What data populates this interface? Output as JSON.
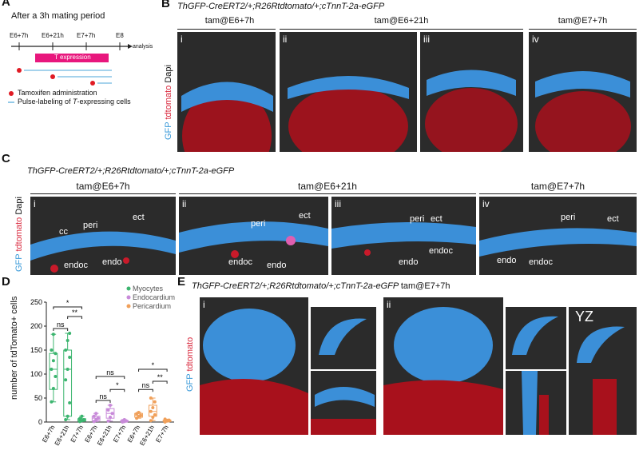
{
  "panels": {
    "a": "A",
    "b": "B",
    "c": "C",
    "d": "D",
    "e": "E"
  },
  "a": {
    "title": "After a 3h mating period",
    "ticks": [
      "E6+7h",
      "E6+21h",
      "E7+7h",
      "E8"
    ],
    "analysis": "analysis",
    "bar": "T expression",
    "legend_tam": "Tamoxifen administration",
    "legend_pulse": "Pulse-labeling of ",
    "legend_pulse_italic": "T",
    "legend_pulse_end": "-expressing cells",
    "colors": {
      "bar": "#e8177d",
      "dot": "#e01b24",
      "line": "#6fb8e0"
    }
  },
  "b": {
    "genotype": "ThGFP-CreERT2/+;R26Rtdtomato/+;cTnnT-2a-eGFP",
    "headers": [
      "tam@E6+7h",
      "tam@E6+21h",
      "tam@E7+7h"
    ],
    "romans": [
      "i",
      "ii",
      "iii",
      "iv"
    ],
    "side_gfp": "GFP",
    "side_td": "tdtomato",
    "side_dapi": "Dapi"
  },
  "c": {
    "genotype": "ThGFP-CreERT2/+;R26Rtdtomato/+;cTnnT-2a-eGFP",
    "headers": [
      "tam@E6+7h",
      "tam@E6+21h",
      "tam@E7+7h"
    ],
    "romans": [
      "i",
      "ii",
      "iii",
      "iv"
    ],
    "labels": {
      "cc": "cc",
      "peri": "peri",
      "ect": "ect",
      "endo": "endo",
      "endoc": "endoc"
    },
    "side_gfp": "GFP",
    "side_td": "tdtomato",
    "side_dapi": "Dapi"
  },
  "d": {
    "legend": [
      "Myocytes",
      "Endocardium",
      "Pericardium"
    ],
    "ns": "ns",
    "star": "*",
    "dstar": "**"
  },
  "e": {
    "genotype": "ThGFP-CreERT2/+;R26Rtdtomato/+;cTnnT-2a-eGFP",
    "tam": "tam@E7+7h",
    "romans": [
      "i",
      "ii"
    ],
    "yz": "YZ",
    "side_gfp": "GFP",
    "side_td": "tdtomato"
  },
  "chart_data": {
    "type": "box",
    "ylabel": "number of tdTomato+ cells",
    "ylim": [
      0,
      250
    ],
    "yticks": [
      0,
      50,
      100,
      150,
      200,
      250
    ],
    "categories": [
      "E6+7h",
      "E6+21h",
      "E7+7h",
      "E6+7h",
      "E6+21h",
      "E7+7h",
      "E6+7h",
      "E6+21h",
      "E7+7h"
    ],
    "colors": {
      "Myocytes": "#3cb56f",
      "Endocardium": "#c88ad9",
      "Pericardium": "#f0a05a"
    },
    "series": [
      {
        "name": "Myocytes",
        "boxes": [
          {
            "q1": 68,
            "median": 110,
            "q3": 143,
            "min": 42,
            "max": 183,
            "points": [
              42,
              70,
              95,
              110,
              128,
              143,
              150,
              183
            ]
          },
          {
            "q1": 12,
            "median": 110,
            "q3": 150,
            "min": 5,
            "max": 185,
            "points": [
              5,
              12,
              40,
              88,
              110,
              135,
              150,
              170,
              185
            ]
          },
          {
            "q1": 2,
            "median": 5,
            "q3": 7,
            "min": 1,
            "max": 12,
            "points": [
              1,
              3,
              5,
              7,
              12
            ]
          }
        ]
      },
      {
        "name": "Endocardium",
        "boxes": [
          {
            "q1": 3,
            "median": 8,
            "q3": 12,
            "min": 1,
            "max": 18,
            "points": [
              1,
              5,
              8,
              12,
              18
            ]
          },
          {
            "q1": 8,
            "median": 18,
            "q3": 28,
            "min": 2,
            "max": 35,
            "points": [
              2,
              10,
              18,
              25,
              35
            ]
          },
          {
            "q1": 1,
            "median": 2,
            "q3": 3,
            "min": 0,
            "max": 5,
            "points": [
              0,
              1,
              2,
              3,
              5
            ]
          }
        ]
      },
      {
        "name": "Pericardium",
        "boxes": [
          {
            "q1": 10,
            "median": 14,
            "q3": 18,
            "min": 8,
            "max": 20,
            "points": [
              8,
              12,
              14,
              17,
              20
            ]
          },
          {
            "q1": 12,
            "median": 22,
            "q3": 35,
            "min": 3,
            "max": 50,
            "points": [
              3,
              10,
              15,
              22,
              30,
              42,
              50
            ]
          },
          {
            "q1": 1,
            "median": 2,
            "q3": 4,
            "min": 0,
            "max": 6,
            "points": [
              0,
              2,
              4,
              6
            ]
          }
        ]
      }
    ]
  }
}
